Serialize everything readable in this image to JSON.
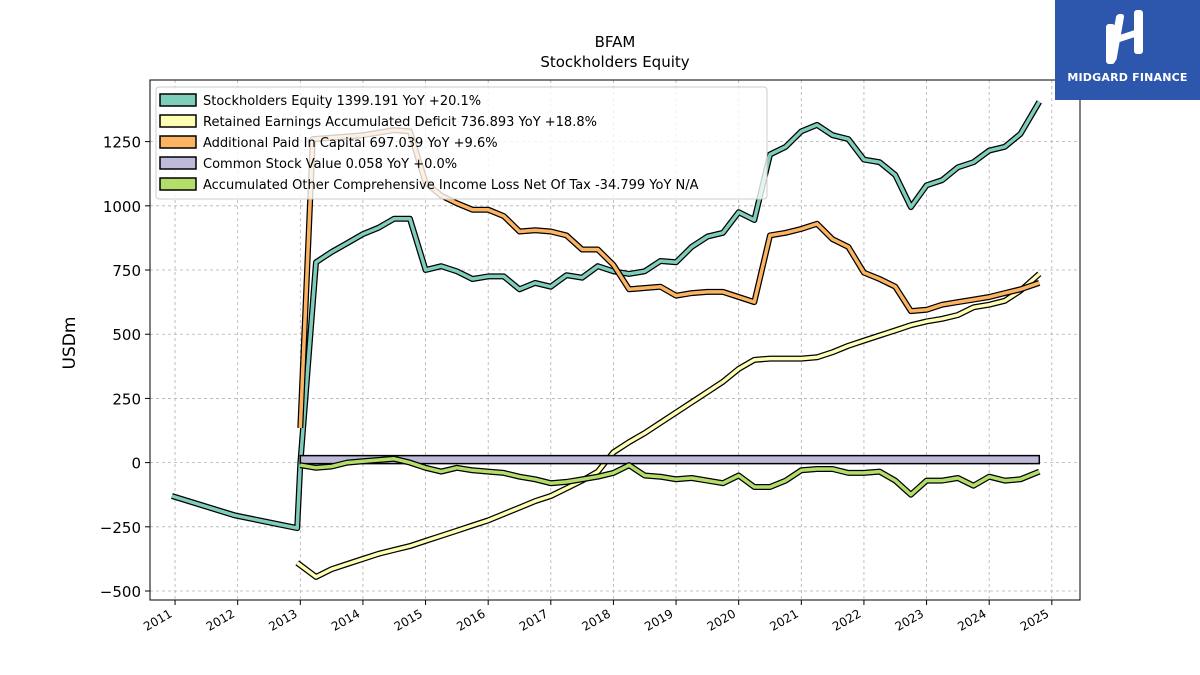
{
  "chart_data": {
    "type": "line",
    "title": "BFAM",
    "subtitle": "Stockholders  Equity",
    "ylabel": "USDm",
    "xlabel": "",
    "xlim": [
      2010.6,
      2025.45
    ],
    "ylim": [
      -535,
      1490
    ],
    "yticks": [
      -500,
      -250,
      0,
      250,
      500,
      750,
      1000,
      1250
    ],
    "ytick_labels": [
      "−500",
      "−250",
      "0",
      "250",
      "500",
      "750",
      "1000",
      "1250"
    ],
    "xticks": [
      2011,
      2012,
      2013,
      2014,
      2015,
      2016,
      2017,
      2018,
      2019,
      2020,
      2021,
      2022,
      2023,
      2024,
      2025
    ],
    "xtick_labels": [
      "2011",
      "2012",
      "2013",
      "2014",
      "2015",
      "2016",
      "2017",
      "2018",
      "2019",
      "2020",
      "2021",
      "2022",
      "2023",
      "2024",
      "2025"
    ],
    "grid": true,
    "legend_position": "top-left",
    "series": [
      {
        "name": "Stockholders Equity  1399.191 YoY +20.1%",
        "color": "#7fcdbb",
        "points": [
          [
            2010.95,
            -130
          ],
          [
            2011.95,
            -205
          ],
          [
            2012.95,
            -255
          ],
          [
            2013.0,
            -5
          ],
          [
            2013.25,
            780
          ],
          [
            2013.5,
            820
          ],
          [
            2013.75,
            855
          ],
          [
            2014.0,
            890
          ],
          [
            2014.25,
            915
          ],
          [
            2014.5,
            950
          ],
          [
            2014.75,
            950
          ],
          [
            2015.0,
            750
          ],
          [
            2015.25,
            765
          ],
          [
            2015.5,
            745
          ],
          [
            2015.75,
            715
          ],
          [
            2016.0,
            725
          ],
          [
            2016.25,
            725
          ],
          [
            2016.5,
            675
          ],
          [
            2016.75,
            700
          ],
          [
            2017.0,
            685
          ],
          [
            2017.25,
            730
          ],
          [
            2017.5,
            720
          ],
          [
            2017.75,
            765
          ],
          [
            2018.0,
            745
          ],
          [
            2018.25,
            735
          ],
          [
            2018.5,
            745
          ],
          [
            2018.75,
            785
          ],
          [
            2019.0,
            780
          ],
          [
            2019.25,
            840
          ],
          [
            2019.5,
            880
          ],
          [
            2019.75,
            895
          ],
          [
            2020.0,
            975
          ],
          [
            2020.25,
            945
          ],
          [
            2020.5,
            1200
          ],
          [
            2020.75,
            1230
          ],
          [
            2021.0,
            1290
          ],
          [
            2021.25,
            1315
          ],
          [
            2021.5,
            1275
          ],
          [
            2021.75,
            1260
          ],
          [
            2022.0,
            1180
          ],
          [
            2022.25,
            1170
          ],
          [
            2022.5,
            1120
          ],
          [
            2022.75,
            995
          ],
          [
            2023.0,
            1080
          ],
          [
            2023.25,
            1100
          ],
          [
            2023.5,
            1150
          ],
          [
            2023.75,
            1170
          ],
          [
            2024.0,
            1215
          ],
          [
            2024.25,
            1230
          ],
          [
            2024.5,
            1280
          ],
          [
            2024.8,
            1405
          ]
        ]
      },
      {
        "name": "Retained Earnings Accumulated Deficit  736.893 YoY +18.8%",
        "color": "#ffffb3",
        "points": [
          [
            2012.95,
            -390
          ],
          [
            2013.25,
            -445
          ],
          [
            2013.5,
            -415
          ],
          [
            2013.75,
            -395
          ],
          [
            2014.0,
            -375
          ],
          [
            2014.25,
            -355
          ],
          [
            2014.5,
            -340
          ],
          [
            2014.75,
            -325
          ],
          [
            2015.0,
            -305
          ],
          [
            2015.25,
            -285
          ],
          [
            2015.5,
            -265
          ],
          [
            2015.75,
            -245
          ],
          [
            2016.0,
            -225
          ],
          [
            2016.25,
            -200
          ],
          [
            2016.5,
            -175
          ],
          [
            2016.75,
            -150
          ],
          [
            2017.0,
            -130
          ],
          [
            2017.25,
            -100
          ],
          [
            2017.5,
            -70
          ],
          [
            2017.75,
            -35
          ],
          [
            2018.0,
            40
          ],
          [
            2018.25,
            80
          ],
          [
            2018.5,
            115
          ],
          [
            2018.75,
            155
          ],
          [
            2019.0,
            195
          ],
          [
            2019.25,
            235
          ],
          [
            2019.5,
            275
          ],
          [
            2019.75,
            315
          ],
          [
            2020.0,
            365
          ],
          [
            2020.25,
            400
          ],
          [
            2020.5,
            405
          ],
          [
            2020.75,
            405
          ],
          [
            2021.0,
            405
          ],
          [
            2021.25,
            410
          ],
          [
            2021.5,
            430
          ],
          [
            2021.75,
            455
          ],
          [
            2022.0,
            475
          ],
          [
            2022.25,
            495
          ],
          [
            2022.5,
            515
          ],
          [
            2022.75,
            535
          ],
          [
            2023.0,
            550
          ],
          [
            2023.25,
            560
          ],
          [
            2023.5,
            575
          ],
          [
            2023.75,
            605
          ],
          [
            2024.0,
            615
          ],
          [
            2024.25,
            630
          ],
          [
            2024.5,
            670
          ],
          [
            2024.8,
            735
          ]
        ]
      },
      {
        "name": "Additional Paid In Capital  697.039 YoY +9.6%",
        "color": "#fdb462",
        "points": [
          [
            2013.0,
            135
          ],
          [
            2013.2,
            1260
          ],
          [
            2013.5,
            1265
          ],
          [
            2013.75,
            1270
          ],
          [
            2014.0,
            1275
          ],
          [
            2014.25,
            1285
          ],
          [
            2014.5,
            1295
          ],
          [
            2014.75,
            1290
          ],
          [
            2015.0,
            1090
          ],
          [
            2015.25,
            1040
          ],
          [
            2015.5,
            1010
          ],
          [
            2015.75,
            985
          ],
          [
            2016.0,
            985
          ],
          [
            2016.25,
            960
          ],
          [
            2016.5,
            900
          ],
          [
            2016.75,
            905
          ],
          [
            2017.0,
            900
          ],
          [
            2017.25,
            885
          ],
          [
            2017.5,
            830
          ],
          [
            2017.75,
            830
          ],
          [
            2018.0,
            770
          ],
          [
            2018.25,
            675
          ],
          [
            2018.5,
            680
          ],
          [
            2018.75,
            685
          ],
          [
            2019.0,
            650
          ],
          [
            2019.25,
            660
          ],
          [
            2019.5,
            665
          ],
          [
            2019.75,
            665
          ],
          [
            2020.0,
            645
          ],
          [
            2020.25,
            625
          ],
          [
            2020.5,
            885
          ],
          [
            2020.75,
            895
          ],
          [
            2021.0,
            910
          ],
          [
            2021.25,
            930
          ],
          [
            2021.5,
            870
          ],
          [
            2021.75,
            840
          ],
          [
            2022.0,
            740
          ],
          [
            2022.25,
            715
          ],
          [
            2022.5,
            685
          ],
          [
            2022.75,
            590
          ],
          [
            2023.0,
            595
          ],
          [
            2023.25,
            615
          ],
          [
            2023.5,
            625
          ],
          [
            2023.75,
            635
          ],
          [
            2024.0,
            645
          ],
          [
            2024.25,
            660
          ],
          [
            2024.5,
            675
          ],
          [
            2024.8,
            700
          ]
        ]
      },
      {
        "name": "Common Stock Value  0.058 YoY +0.0%",
        "color": "#bebada",
        "points": [
          [
            2013.0,
            0.05
          ],
          [
            2024.8,
            0.058
          ]
        ]
      },
      {
        "name": "Accumulated Other Comprehensive Income Loss Net Of Tax  -34.799 YoY N/A",
        "color": "#b3de69",
        "points": [
          [
            2013.0,
            -10
          ],
          [
            2013.25,
            -20
          ],
          [
            2013.5,
            -15
          ],
          [
            2013.75,
            0
          ],
          [
            2014.0,
            5
          ],
          [
            2014.25,
            10
          ],
          [
            2014.5,
            15
          ],
          [
            2014.75,
            0
          ],
          [
            2015.0,
            -20
          ],
          [
            2015.25,
            -35
          ],
          [
            2015.5,
            -20
          ],
          [
            2015.75,
            -30
          ],
          [
            2016.0,
            -35
          ],
          [
            2016.25,
            -40
          ],
          [
            2016.5,
            -55
          ],
          [
            2016.75,
            -65
          ],
          [
            2017.0,
            -80
          ],
          [
            2017.25,
            -75
          ],
          [
            2017.5,
            -65
          ],
          [
            2017.75,
            -55
          ],
          [
            2018.0,
            -40
          ],
          [
            2018.25,
            -10
          ],
          [
            2018.5,
            -50
          ],
          [
            2018.75,
            -55
          ],
          [
            2019.0,
            -65
          ],
          [
            2019.25,
            -60
          ],
          [
            2019.5,
            -70
          ],
          [
            2019.75,
            -80
          ],
          [
            2020.0,
            -50
          ],
          [
            2020.25,
            -95
          ],
          [
            2020.5,
            -95
          ],
          [
            2020.75,
            -70
          ],
          [
            2021.0,
            -30
          ],
          [
            2021.25,
            -25
          ],
          [
            2021.5,
            -25
          ],
          [
            2021.75,
            -40
          ],
          [
            2022.0,
            -40
          ],
          [
            2022.25,
            -35
          ],
          [
            2022.5,
            -70
          ],
          [
            2022.75,
            -125
          ],
          [
            2023.0,
            -70
          ],
          [
            2023.25,
            -70
          ],
          [
            2023.5,
            -60
          ],
          [
            2023.75,
            -90
          ],
          [
            2024.0,
            -55
          ],
          [
            2024.25,
            -70
          ],
          [
            2024.5,
            -65
          ],
          [
            2024.8,
            -35
          ]
        ]
      }
    ]
  },
  "logo": {
    "text": "MIDGARD FINANCE",
    "color": "#2d56ad"
  }
}
